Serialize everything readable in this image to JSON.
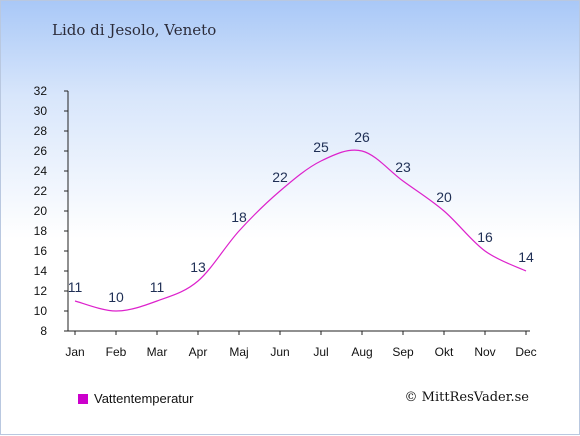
{
  "header": {
    "location_title": "Lido di Jesolo, Veneto"
  },
  "legend": {
    "label": "Vattentemperatur",
    "swatch_color": "#cc00cc"
  },
  "footer": {
    "credit": "© MittResVader.se"
  },
  "chart_data": {
    "type": "line",
    "title": "Lido di Jesolo, Veneto",
    "xlabel": "",
    "ylabel": "",
    "categories": [
      "Jan",
      "Feb",
      "Mar",
      "Apr",
      "Maj",
      "Jun",
      "Jul",
      "Aug",
      "Sep",
      "Okt",
      "Nov",
      "Dec"
    ],
    "series": [
      {
        "name": "Vattentemperatur",
        "values": [
          11,
          10,
          11,
          13,
          18,
          22,
          25,
          26,
          23,
          20,
          16,
          14
        ],
        "color": "#dd22cc"
      }
    ],
    "ylim": [
      8,
      32
    ],
    "yticks": [
      8,
      10,
      12,
      14,
      16,
      18,
      20,
      22,
      24,
      26,
      28,
      30,
      32
    ],
    "grid": false,
    "legend_position": "bottom-left"
  }
}
